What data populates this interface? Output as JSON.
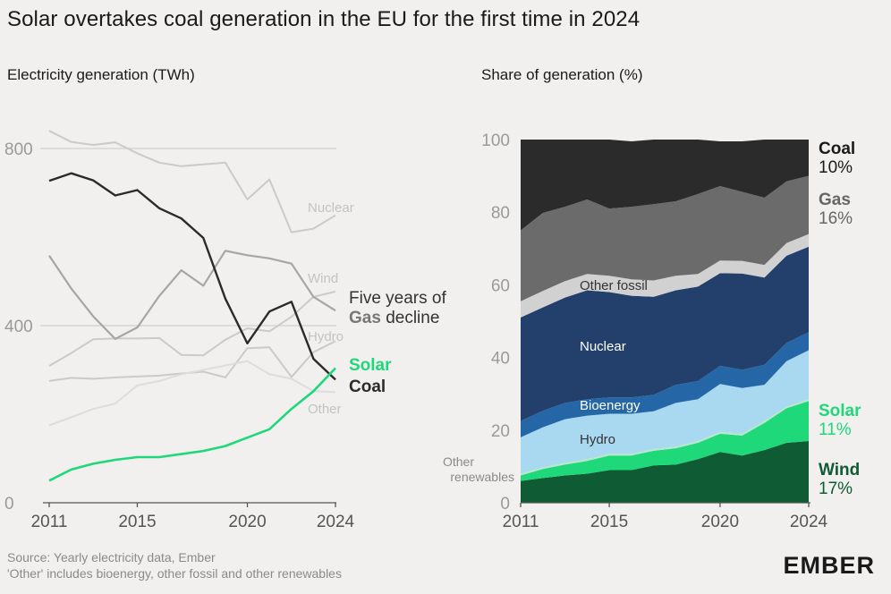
{
  "title": "Solar overtakes coal generation in the EU for the first time in 2024",
  "logo": "EMBER",
  "source": {
    "line1": "Source: Yearly electricity data, Ember",
    "line2": "'Other' includes bioenergy, other fossil and other renewables"
  },
  "colors": {
    "solar": "#1ed87a",
    "coal": "#2b2b2b",
    "gas": "#6b6b6b",
    "nuclear": "#23406d",
    "hydro": "#a9d8f1",
    "bioenergy": "#2566a6",
    "wind": "#0f5c34",
    "other_renewables": "#b7e8c9",
    "other_fossil": "#d1d1d1",
    "grey_line": "#a6a6a6",
    "light_line": "#cacaca"
  },
  "chart_data": [
    {
      "type": "line",
      "subtitle": "Electricity generation (TWh)",
      "x": [
        2011,
        2012,
        2013,
        2014,
        2015,
        2016,
        2017,
        2018,
        2019,
        2020,
        2021,
        2022,
        2023,
        2024
      ],
      "xticks": [
        "2011",
        "2015",
        "2020",
        "2024"
      ],
      "ylim": [
        0,
        840
      ],
      "yticks": [
        "0",
        "400",
        "800"
      ],
      "grid": "horizontal at 400 and 800",
      "series": [
        {
          "name": "Nuclear",
          "label": "Nuclear",
          "values": [
            840,
            815,
            808,
            814,
            789,
            768,
            760,
            764,
            768,
            685,
            730,
            611,
            619,
            649
          ]
        },
        {
          "name": "Wind",
          "label": "Wind",
          "values": [
            309,
            338,
            369,
            371,
            371,
            372,
            334,
            333,
            368,
            394,
            387,
            420,
            465,
            477
          ]
        },
        {
          "name": "Hydro",
          "label": "Hydro",
          "values": [
            275,
            282,
            280,
            283,
            285,
            287,
            292,
            296,
            283,
            349,
            351,
            284,
            340,
            365
          ]
        },
        {
          "name": "Other",
          "label": "Other",
          "values": [
            175,
            193,
            212,
            224,
            265,
            275,
            290,
            300,
            310,
            320,
            290,
            280,
            252,
            250
          ]
        },
        {
          "name": "Gas",
          "label": "Five years of",
          "label_emph": "Gas",
          "label_tail": "decline",
          "values": [
            558,
            484,
            421,
            370,
            396,
            467,
            525,
            490,
            569,
            559,
            552,
            540,
            465,
            434
          ]
        },
        {
          "name": "Coal",
          "label": "Coal",
          "values": [
            727,
            744,
            728,
            694,
            706,
            665,
            642,
            598,
            461,
            360,
            432,
            454,
            325,
            278
          ]
        },
        {
          "name": "Solar",
          "label": "Solar",
          "values": [
            50,
            75,
            88,
            97,
            103,
            103,
            110,
            117,
            128,
            147,
            166,
            212,
            252,
            304
          ]
        }
      ]
    },
    {
      "type": "area",
      "subtitle": "Share of generation (%)",
      "x": [
        2011,
        2012,
        2013,
        2014,
        2015,
        2016,
        2017,
        2018,
        2019,
        2020,
        2021,
        2022,
        2023,
        2024
      ],
      "xticks": [
        "2011",
        "2015",
        "2020",
        "2024"
      ],
      "ylim": [
        0,
        100
      ],
      "yticks": [
        "0",
        "20",
        "40",
        "60",
        "80",
        "100"
      ],
      "stack_order": [
        "Wind",
        "Solar",
        "Other renewables",
        "Hydro",
        "Bioenergy",
        "Nuclear",
        "Other fossil",
        "Gas",
        "Coal"
      ],
      "series": [
        {
          "name": "Wind",
          "label": "Wind",
          "end_label": "17%",
          "values": [
            6,
            6.8,
            7.5,
            8,
            9,
            9,
            10.3,
            10.5,
            12,
            14,
            13,
            14.5,
            16.5,
            17
          ]
        },
        {
          "name": "Solar",
          "values": [
            1.5,
            2.5,
            3,
            3.5,
            4,
            4,
            4,
            4.5,
            4.5,
            5,
            5.5,
            7.5,
            9.5,
            11
          ]
        },
        {
          "name": "Other renewables",
          "label": "Other renewables",
          "values": [
            0.5,
            0.5,
            0.5,
            0.5,
            0.5,
            0.5,
            0.5,
            0.5,
            0.5,
            0.5,
            0.5,
            0.5,
            0.5,
            0.5
          ]
        },
        {
          "name": "Hydro",
          "label": "Hydro",
          "values": [
            10,
            11,
            12,
            12,
            11,
            11,
            10.4,
            12,
            11.5,
            13.2,
            12.6,
            10,
            12.5,
            13.5
          ]
        },
        {
          "name": "Bioenergy",
          "label": "Bioenergy",
          "values": [
            4.5,
            4.5,
            4.5,
            4.5,
            4.5,
            4.5,
            4.5,
            5,
            5,
            5,
            5,
            5.5,
            5,
            5
          ]
        },
        {
          "name": "Nuclear",
          "label": "Nuclear",
          "values": [
            28.5,
            28.5,
            29,
            30,
            29,
            28,
            27,
            26,
            26,
            25.5,
            26.5,
            24,
            24,
            23.5
          ]
        },
        {
          "name": "Other fossil",
          "label": "Other fossil",
          "values": [
            4.5,
            4.5,
            4.5,
            4.5,
            4.5,
            4.5,
            4.5,
            4,
            3.5,
            3.5,
            3.5,
            3.5,
            3.5,
            3.5
          ]
        },
        {
          "name": "Gas",
          "label": "Gas",
          "end_label": "16%",
          "values": [
            19.5,
            21.5,
            20.5,
            20.5,
            18.5,
            20,
            21,
            20.5,
            22,
            20.5,
            19,
            18.5,
            17,
            16
          ]
        },
        {
          "name": "Coal",
          "label": "Coal",
          "end_label": "10%",
          "values": [
            25,
            20.2,
            18.5,
            16.5,
            19,
            18,
            17.8,
            17,
            15,
            12.3,
            13.9,
            16,
            11.5,
            10
          ]
        }
      ],
      "end_labels": {
        "Coal": {
          "name": "Coal",
          "pct": "10%"
        },
        "Gas": {
          "name": "Gas",
          "pct": "16%"
        },
        "Solar": {
          "name": "Solar",
          "pct": "11%"
        },
        "Wind": {
          "name": "Wind",
          "pct": "17%"
        }
      }
    }
  ]
}
